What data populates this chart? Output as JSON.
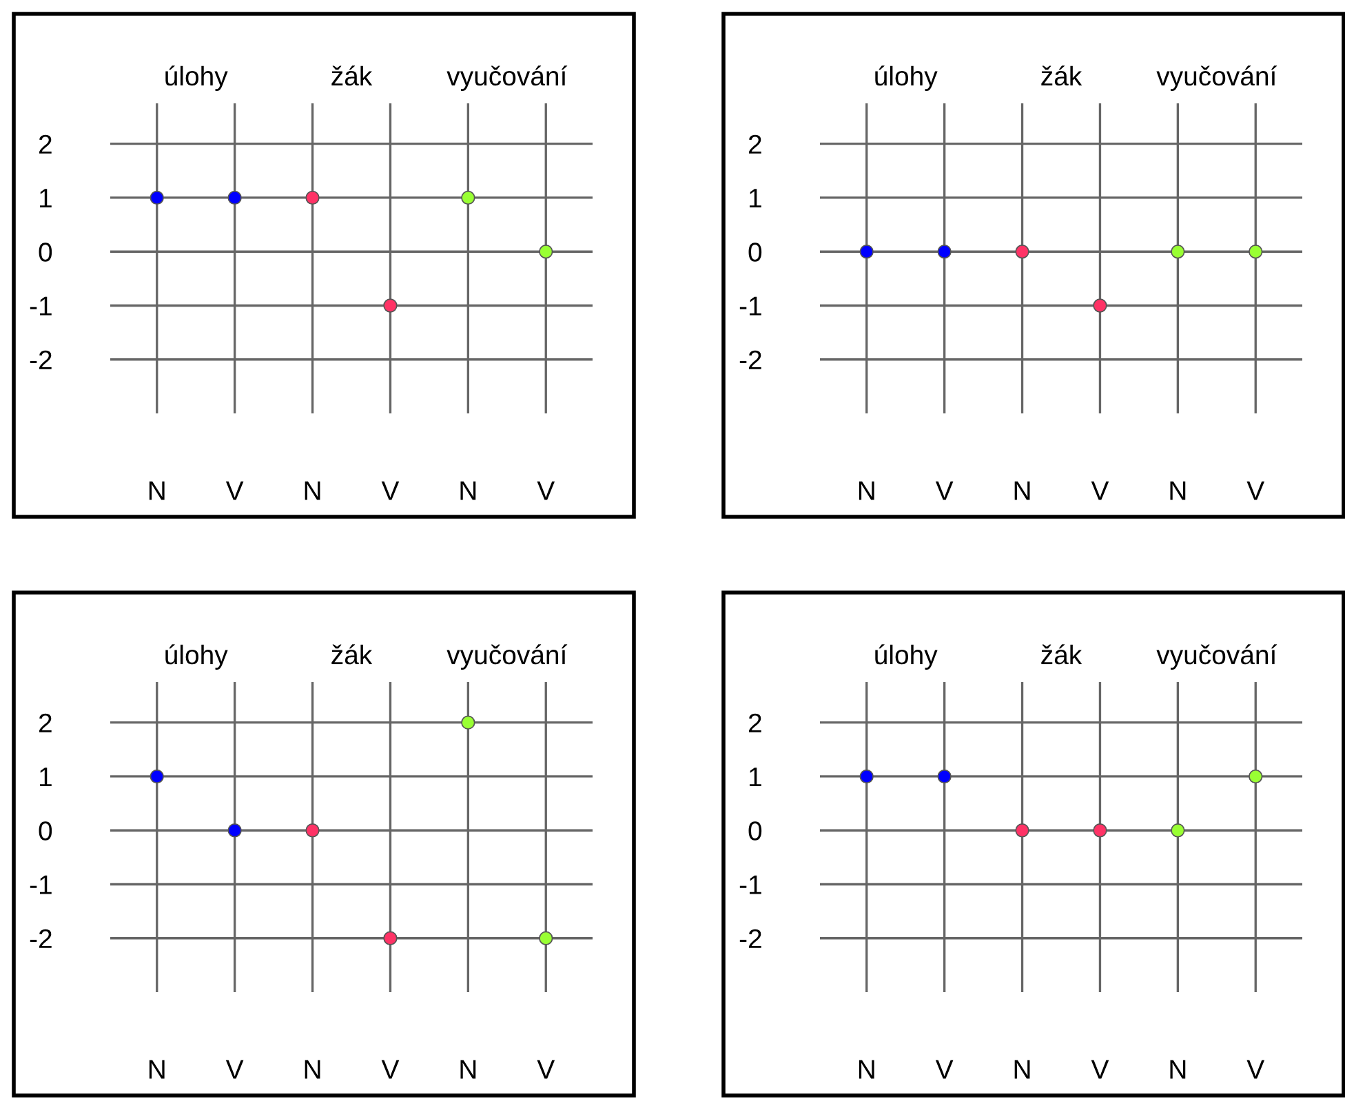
{
  "chart_data": [
    {
      "type": "scatter",
      "categories": [
        "N",
        "V",
        "N",
        "V",
        "N",
        "V"
      ],
      "ylim": [
        -3,
        2.75
      ],
      "yticks": [
        -2,
        -1,
        0,
        1,
        2
      ],
      "grid": true,
      "marker": "circle",
      "annotations": [
        "úlohy",
        "žák",
        "vyučování"
      ],
      "series": [
        {
          "color": "#0000ff",
          "values": [
            1,
            1,
            null,
            null,
            null,
            null
          ]
        },
        {
          "color": "#ff3366",
          "values": [
            null,
            null,
            1,
            -1,
            null,
            null
          ]
        },
        {
          "color": "#99ff33",
          "values": [
            null,
            null,
            null,
            null,
            1,
            0
          ]
        }
      ]
    },
    {
      "type": "scatter",
      "categories": [
        "N",
        "V",
        "N",
        "V",
        "N",
        "V"
      ],
      "ylim": [
        -3,
        2.75
      ],
      "yticks": [
        -2,
        -1,
        0,
        1,
        2
      ],
      "grid": true,
      "marker": "circle",
      "annotations": [
        "úlohy",
        "žák",
        "vyučování"
      ],
      "series": [
        {
          "color": "#0000ff",
          "values": [
            0,
            0,
            null,
            null,
            null,
            null
          ]
        },
        {
          "color": "#ff3366",
          "values": [
            null,
            null,
            0,
            -1,
            null,
            null
          ]
        },
        {
          "color": "#99ff33",
          "values": [
            null,
            null,
            null,
            null,
            0,
            0
          ]
        }
      ]
    },
    {
      "type": "scatter",
      "categories": [
        "N",
        "V",
        "N",
        "V",
        "N",
        "V"
      ],
      "ylim": [
        -3,
        2.75
      ],
      "yticks": [
        -2,
        -1,
        0,
        1,
        2
      ],
      "grid": true,
      "marker": "circle",
      "annotations": [
        "úlohy",
        "žák",
        "vyučování"
      ],
      "series": [
        {
          "color": "#0000ff",
          "values": [
            1,
            0,
            null,
            null,
            null,
            null
          ]
        },
        {
          "color": "#ff3366",
          "values": [
            null,
            null,
            0,
            -2,
            null,
            null
          ]
        },
        {
          "color": "#99ff33",
          "values": [
            null,
            null,
            null,
            null,
            2,
            -2
          ]
        }
      ]
    },
    {
      "type": "scatter",
      "categories": [
        "N",
        "V",
        "N",
        "V",
        "N",
        "V"
      ],
      "ylim": [
        -3,
        2.75
      ],
      "yticks": [
        -2,
        -1,
        0,
        1,
        2
      ],
      "grid": true,
      "marker": "circle",
      "annotations": [
        "úlohy",
        "žák",
        "vyučování"
      ],
      "series": [
        {
          "color": "#0000ff",
          "values": [
            1,
            1,
            null,
            null,
            null,
            null
          ]
        },
        {
          "color": "#ff3366",
          "values": [
            null,
            null,
            0,
            0,
            null,
            null
          ]
        },
        {
          "color": "#99ff33",
          "values": [
            null,
            null,
            null,
            null,
            0,
            1
          ]
        }
      ]
    }
  ]
}
